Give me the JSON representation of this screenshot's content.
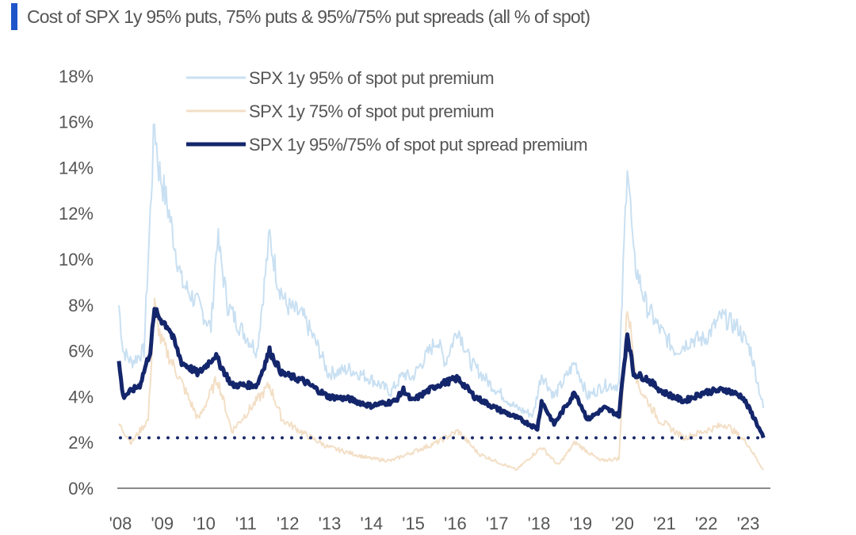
{
  "chart_data": {
    "type": "line",
    "title": "Cost of SPX 1y 95% puts, 75% puts & 95%/75% put spreads (all % of spot)",
    "xlabel": "",
    "ylabel": "",
    "xlim": [
      2008,
      2023.5
    ],
    "ylim": [
      0,
      18
    ],
    "y_ticks": [
      "0%",
      "2%",
      "4%",
      "6%",
      "8%",
      "10%",
      "12%",
      "14%",
      "16%",
      "18%"
    ],
    "y_tick_values": [
      0,
      2,
      4,
      6,
      8,
      10,
      12,
      14,
      16,
      18
    ],
    "x_ticks": [
      "'08",
      "'09",
      "'10",
      "'11",
      "'12",
      "'13",
      "'14",
      "'15",
      "'16",
      "'17",
      "'18",
      "'19",
      "'20",
      "'21",
      "'22",
      "'23"
    ],
    "x_tick_values": [
      2008,
      2009,
      2010,
      2011,
      2012,
      2013,
      2014,
      2015,
      2016,
      2017,
      2018,
      2019,
      2020,
      2021,
      2022,
      2023
    ],
    "legend_position": "top-center",
    "reference_line": {
      "value": 2.2,
      "style": "dotted",
      "color": "#1b2a6b"
    },
    "series": [
      {
        "name": "SPX 1y 95% of spot put premium",
        "color": "#c9e0f2",
        "width": 2,
        "x": [
          2008,
          2008.1,
          2008.3,
          2008.6,
          2008.75,
          2008.85,
          2008.95,
          2009.2,
          2009.5,
          2009.9,
          2010.2,
          2010.35,
          2010.6,
          2010.9,
          2011.3,
          2011.6,
          2011.8,
          2012.0,
          2012.4,
          2012.8,
          2013.0,
          2013.5,
          2014.0,
          2014.5,
          2014.8,
          2015.0,
          2015.6,
          2015.8,
          2016.1,
          2016.4,
          2016.9,
          2017.5,
          2017.9,
          2018.1,
          2018.4,
          2018.9,
          2019.2,
          2019.6,
          2019.95,
          2020.15,
          2020.3,
          2020.6,
          2020.9,
          2021.3,
          2021.7,
          2022.0,
          2022.4,
          2022.8,
          2023.1,
          2023.4
        ],
        "values": [
          8,
          6,
          5.5,
          6,
          12,
          16,
          14,
          12,
          9,
          8,
          7,
          11,
          8,
          7,
          6,
          11,
          9,
          8,
          7.5,
          6,
          5,
          5.2,
          4.8,
          4.2,
          5,
          4.8,
          6.5,
          5.5,
          7,
          5.5,
          4.5,
          3.5,
          3.2,
          5,
          4,
          5.5,
          4,
          4.5,
          4.5,
          14.5,
          10,
          8,
          7,
          6,
          6.5,
          6.5,
          7.5,
          7,
          6,
          3.5
        ]
      },
      {
        "name": "SPX 1y 75% of spot put premium",
        "color": "#f3dfc6",
        "width": 2,
        "x": [
          2008,
          2008.3,
          2008.7,
          2008.85,
          2009.0,
          2009.4,
          2009.9,
          2010.35,
          2010.7,
          2011.6,
          2011.9,
          2012.5,
          2013,
          2014,
          2014.5,
          2015.6,
          2016.1,
          2016.6,
          2017.5,
          2018.1,
          2018.5,
          2018.9,
          2019.5,
          2019.95,
          2020.15,
          2020.4,
          2020.9,
          2021.5,
          2022.0,
          2022.5,
          2023.0,
          2023.4
        ],
        "values": [
          2.8,
          2,
          3,
          8,
          6.5,
          5,
          3,
          4.8,
          2.5,
          4.5,
          3,
          2.3,
          1.8,
          1.3,
          1.2,
          2,
          2.5,
          1.5,
          0.8,
          1.8,
          1,
          2,
          1.2,
          1.3,
          8,
          4.5,
          3,
          2.2,
          2.5,
          2.8,
          2,
          0.8
        ]
      },
      {
        "name": "SPX 1y 95%/75% of spot put spread premium",
        "color": "#14266b",
        "width": 5,
        "x": [
          2008,
          2008.1,
          2008.5,
          2008.75,
          2008.85,
          2009.2,
          2009.5,
          2009.9,
          2010.3,
          2010.7,
          2011.3,
          2011.6,
          2011.9,
          2012.4,
          2013,
          2013.5,
          2014,
          2014.6,
          2014.8,
          2015,
          2015.6,
          2016.1,
          2016.5,
          2017,
          2017.6,
          2018.0,
          2018.1,
          2018.4,
          2018.9,
          2019.2,
          2019.6,
          2019.95,
          2020.15,
          2020.3,
          2020.6,
          2021,
          2021.5,
          2022,
          2022.5,
          2022.9,
          2023.2,
          2023.4
        ],
        "values": [
          5.5,
          4,
          4.5,
          6,
          7.7,
          7,
          5.5,
          5,
          5.8,
          4.5,
          4.5,
          6,
          5,
          4.7,
          4,
          3.9,
          3.6,
          3.8,
          4.3,
          3.8,
          4.5,
          4.8,
          4,
          3.5,
          3,
          2.6,
          3.8,
          2.8,
          4.2,
          3,
          3.5,
          3.2,
          6.8,
          5,
          4.8,
          4.2,
          3.8,
          4.2,
          4.3,
          4,
          3,
          2.2
        ]
      }
    ]
  }
}
